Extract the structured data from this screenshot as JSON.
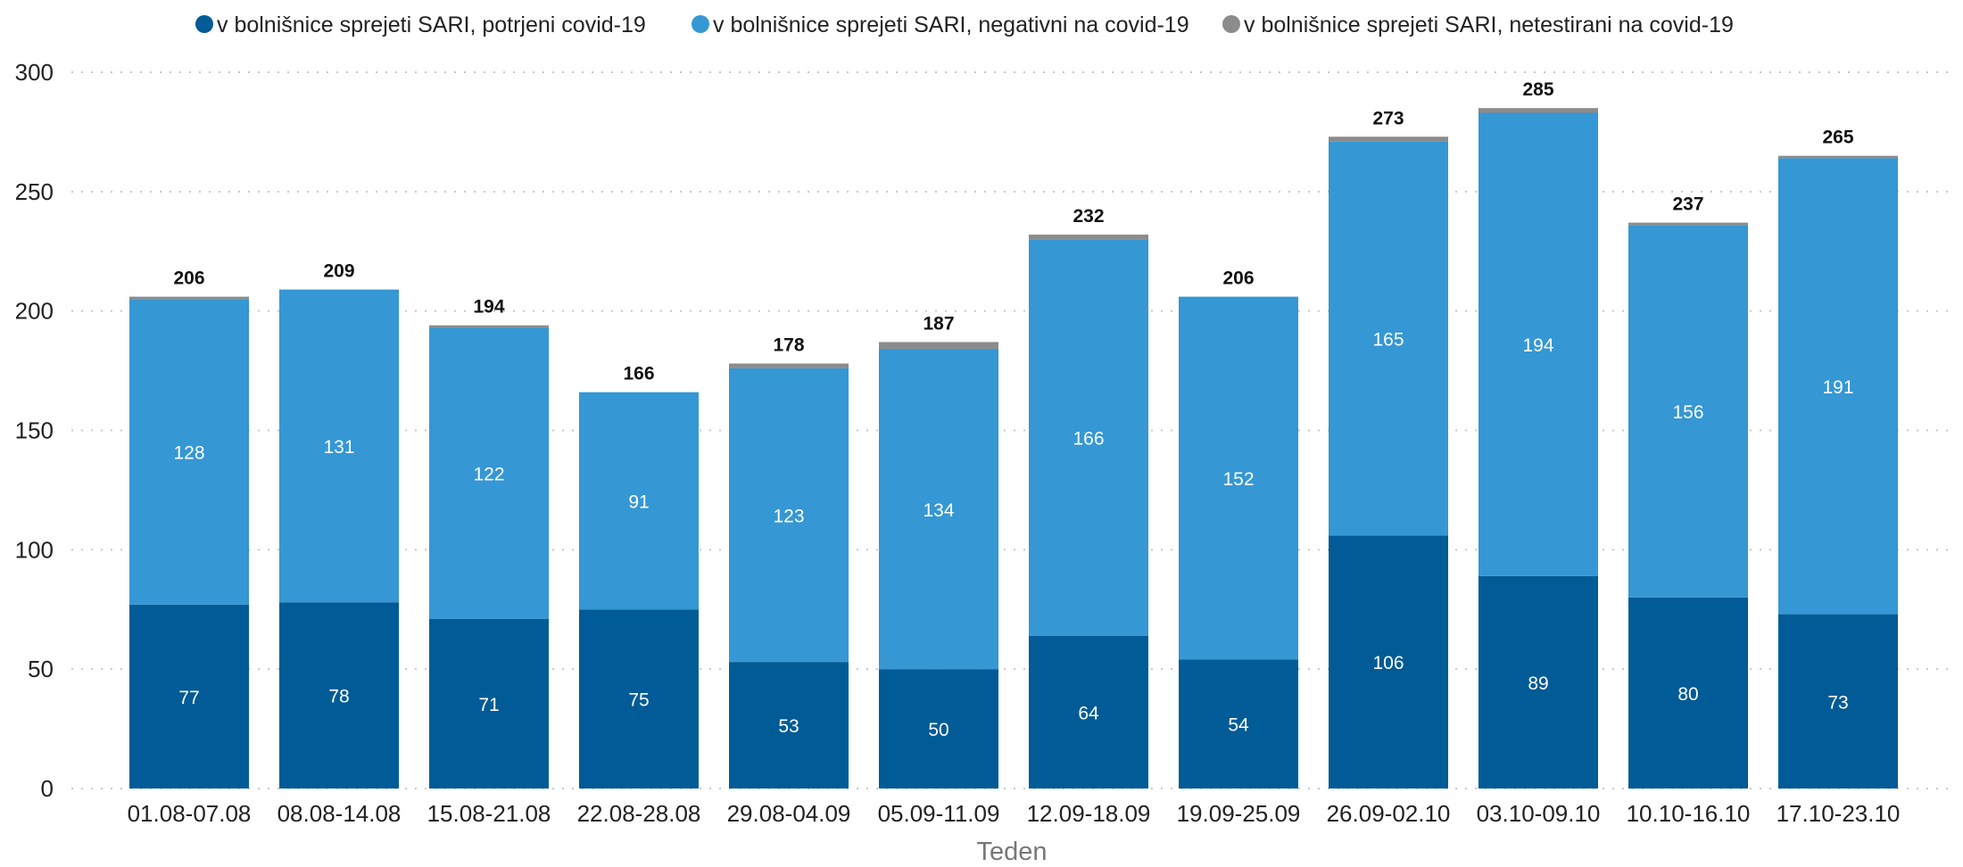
{
  "chart_data": {
    "type": "bar",
    "stacked": true,
    "title": "",
    "xlabel": "Teden",
    "ylabel": "",
    "ylim": [
      0,
      300
    ],
    "yticks": [
      0,
      50,
      100,
      150,
      200,
      250,
      300
    ],
    "grid": true,
    "legend_position": "top",
    "categories": [
      "01.08-07.08",
      "08.08-14.08",
      "15.08-21.08",
      "22.08-28.08",
      "29.08-04.09",
      "05.09-11.09",
      "12.09-18.09",
      "19.09-25.09",
      "26.09-02.10",
      "03.10-09.10",
      "10.10-16.10",
      "17.10-23.10"
    ],
    "series": [
      {
        "name": "v bolnišnice sprejeti SARI, potrjeni covid-19",
        "color": "#005b96",
        "values": [
          77,
          78,
          71,
          75,
          53,
          50,
          64,
          54,
          106,
          89,
          80,
          73
        ]
      },
      {
        "name": "v bolnišnice sprejeti SARI, negativni na covid-19",
        "color": "#3597d3",
        "values": [
          128,
          131,
          122,
          91,
          123,
          134,
          166,
          152,
          165,
          194,
          156,
          191
        ]
      },
      {
        "name": "v bolnišnice sprejeti SARI, netestirani na covid-19",
        "color": "#8c8c8c",
        "values": [
          1,
          0,
          1,
          0,
          2,
          3,
          2,
          0,
          2,
          2,
          1,
          1
        ]
      }
    ],
    "totals": [
      206,
      209,
      194,
      166,
      178,
      187,
      232,
      206,
      273,
      285,
      237,
      265
    ]
  }
}
